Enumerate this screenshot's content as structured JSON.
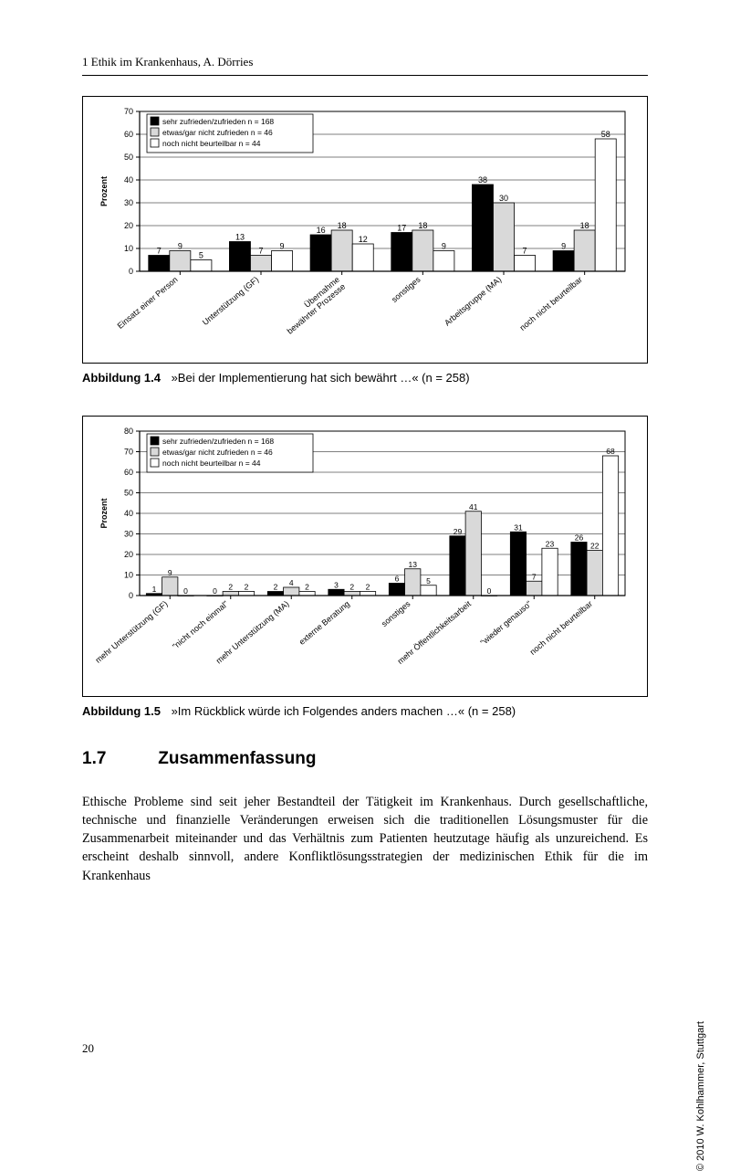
{
  "running_head": "1  Ethik im Krankenhaus, A. Dörries",
  "page_number": "20",
  "copyright": "© 2010 W. Kohlhammer, Stuttgart",
  "chart1": {
    "type": "grouped-bar",
    "ylabel": "Prozent",
    "ylim": [
      0,
      70
    ],
    "ytick_step": 10,
    "axis_fontsize": 9,
    "tick_fontsize": 9,
    "value_label_fontsize": 9,
    "x_label_rotation": -40,
    "background_color": "#ffffff",
    "grid_color": "#000000",
    "axis_color": "#000000",
    "legend": {
      "position": "top-left-inside",
      "fontsize": 8.5,
      "items": [
        {
          "label": "sehr zufrieden/zufrieden n = 168",
          "fill": "#000000"
        },
        {
          "label": "etwas/gar nicht zufrieden n = 46",
          "fill": "#d9d9d9"
        },
        {
          "label": "noch nicht beurteilbar n = 44",
          "fill": "#ffffff"
        }
      ]
    },
    "series_colors": [
      "#000000",
      "#d9d9d9",
      "#ffffff"
    ],
    "series_border": "#000000",
    "bar_width": 0.26,
    "categories": [
      "Einsatz einer Person",
      "Unterstützung (GF)",
      "Übernahme\nbewährter Prozesse",
      "sonstiges",
      "Arbeitsgruppe (MA)",
      "noch nicht beurteilbar"
    ],
    "values": [
      [
        7,
        13,
        16,
        17,
        38,
        9
      ],
      [
        9,
        7,
        18,
        18,
        30,
        18
      ],
      [
        5,
        9,
        12,
        9,
        7,
        58
      ]
    ]
  },
  "caption1": {
    "fignum": "Abbildung 1.4",
    "text": "»Bei der Implementierung hat sich bewährt …« (n = 258)"
  },
  "chart2": {
    "type": "grouped-bar",
    "ylabel": "Prozent",
    "ylim": [
      0,
      80
    ],
    "ytick_step": 10,
    "axis_fontsize": 9,
    "tick_fontsize": 9,
    "value_label_fontsize": 8.5,
    "x_label_rotation": -40,
    "background_color": "#ffffff",
    "grid_color": "#000000",
    "axis_color": "#000000",
    "legend": {
      "position": "top-left-inside",
      "fontsize": 8.5,
      "items": [
        {
          "label": "sehr zufrieden/zufrieden n = 168",
          "fill": "#000000"
        },
        {
          "label": "etwas/gar nicht zufrieden n = 46",
          "fill": "#d9d9d9"
        },
        {
          "label": "noch nicht beurteilbar n = 44",
          "fill": "#ffffff"
        }
      ]
    },
    "series_colors": [
      "#000000",
      "#d9d9d9",
      "#ffffff"
    ],
    "series_border": "#000000",
    "bar_width": 0.26,
    "categories": [
      "mehr Unterstützung (GF)",
      "\"nicht noch einmal\"",
      "mehr Unterstützung (MA)",
      "externe Beratung",
      "sonstiges",
      "mehr Öffentlichkeitsarbeit",
      "\"wieder genauso\"",
      "noch nicht beurteilbar"
    ],
    "values": [
      [
        1,
        0,
        2,
        3,
        6,
        29,
        31,
        26
      ],
      [
        9,
        2,
        4,
        2,
        13,
        41,
        7,
        22
      ],
      [
        0,
        2,
        2,
        2,
        5,
        0,
        23,
        68
      ]
    ]
  },
  "caption2": {
    "fignum": "Abbildung 1.5",
    "text": "»Im Rückblick würde ich Folgendes anders machen …« (n = 258)"
  },
  "section": {
    "num": "1.7",
    "title": "Zusammenfassung"
  },
  "body": "Ethische Probleme sind seit jeher Bestandteil der Tätigkeit im Krankenhaus. Durch gesellschaftliche, technische und finanzielle Veränderungen erweisen sich die traditionellen Lösungsmuster für die Zusammenarbeit miteinander und das Verhältnis zum Patienten heutzutage häufig als unzureichend. Es erscheint deshalb sinnvoll, andere Konfliktlösungsstrategien der medizinischen Ethik für die im Krankenhaus"
}
